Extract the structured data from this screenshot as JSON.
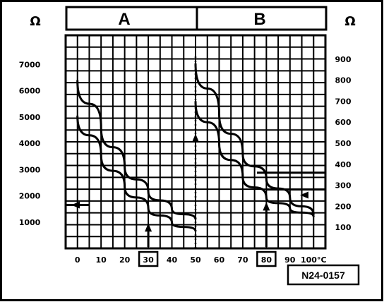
{
  "chart_data": {
    "type": "line",
    "panels": [
      {
        "label": "A",
        "ylabel": "Ω",
        "x_range": [
          0,
          50
        ]
      },
      {
        "label": "B",
        "ylabel": "Ω",
        "x_range": [
          50,
          100
        ]
      }
    ],
    "x_ticks": [
      "0",
      "10",
      "20",
      "30",
      "40",
      "50",
      "60",
      "70",
      "80",
      "90",
      "100°C"
    ],
    "highlighted_ticks": [
      "30",
      "80"
    ],
    "y_left_ticks": [
      "7000",
      "6000",
      "5000",
      "4000",
      "3000",
      "2000",
      "1000"
    ],
    "y_right_ticks": [
      "900",
      "800",
      "700",
      "600",
      "500",
      "400",
      "300",
      "200",
      "100"
    ],
    "ylim_left": [
      0,
      8000
    ],
    "ylim_right": [
      0,
      1000
    ],
    "xlim": [
      0,
      100
    ],
    "grid": true,
    "series": [
      {
        "panel": "A",
        "x": [
          0,
          10,
          20,
          30,
          40,
          50
        ],
        "y": [
          6400,
          4600,
          3100,
          2150,
          1500,
          1100
        ]
      },
      {
        "panel": "A",
        "x": [
          0,
          10,
          20,
          30,
          40,
          50
        ],
        "y": [
          5050,
          3550,
          2350,
          1520,
          980,
          650
        ]
      },
      {
        "panel": "B",
        "x": [
          50,
          60,
          70,
          80,
          90,
          100
        ],
        "y": [
          880,
          640,
          450,
          330,
          240,
          160
        ]
      },
      {
        "panel": "B",
        "x": [
          50,
          60,
          70,
          80,
          90,
          100
        ],
        "y": [
          700,
          500,
          340,
          240,
          190,
          150
        ]
      }
    ],
    "annotations": {
      "arrow_left_value": 1650,
      "arrow_right_value": 280,
      "arrow_up_at_x": [
        30,
        50,
        80
      ]
    }
  },
  "reference_code": "N24-0157",
  "colors": {
    "ink": "#000000",
    "background": "#ffffff"
  }
}
